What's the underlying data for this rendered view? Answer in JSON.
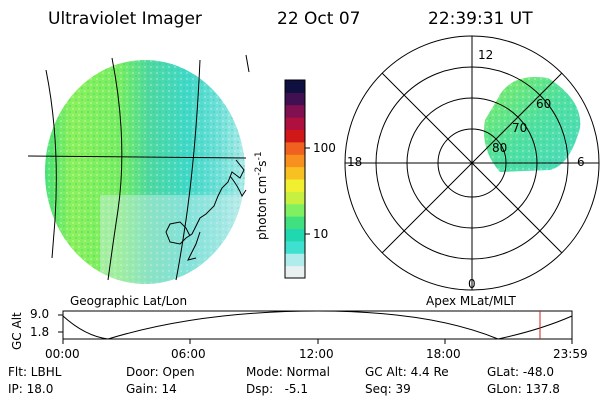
{
  "header": {
    "instrument": "Ultraviolet Imager",
    "date": "22 Oct 07",
    "time": "22:39:31 UT"
  },
  "left_panel": {
    "caption": "Geographic Lat/Lon"
  },
  "right_panel": {
    "caption": "Apex MLat/MLT",
    "mlt_labels": {
      "top": "12",
      "left": "18",
      "right": "6",
      "bottom": "0"
    },
    "lat_labels": [
      "60",
      "70",
      "80"
    ]
  },
  "colorbar": {
    "unit_label": "photon cm",
    "unit_sup1": "-2",
    "unit_mid": "s",
    "unit_sup2": "-1",
    "ticks": [
      "100",
      "10"
    ],
    "colors": [
      "#e8f0f0",
      "#b0ecec",
      "#40e0d0",
      "#20d8b0",
      "#40e080",
      "#80f060",
      "#c8f040",
      "#f0f030",
      "#f8c020",
      "#f89020",
      "#f06020",
      "#d01818",
      "#b01040",
      "#801050",
      "#401050",
      "#101040"
    ]
  },
  "altitude_plot": {
    "ylabel": "GC Alt",
    "ymax_label": "9.0",
    "ymin_label": "1.8",
    "x_ticks": [
      "00:00",
      "06:00",
      "12:00",
      "18:00",
      "23:59"
    ],
    "marker_color": "#cc2222"
  },
  "footer": {
    "row1": [
      {
        "label": "Flt: LBHL"
      },
      {
        "label": "Door: Open"
      },
      {
        "label": "Mode: Normal"
      },
      {
        "label": "GC Alt: 4.4 Re"
      },
      {
        "label": "GLat: -48.0"
      }
    ],
    "row2": [
      {
        "label": "IP: 18.0"
      },
      {
        "label": "Gain: 14"
      },
      {
        "label": "Dsp:   -5.1"
      },
      {
        "label": "Seq: 39"
      },
      {
        "label": "GLon: 137.8"
      }
    ]
  }
}
